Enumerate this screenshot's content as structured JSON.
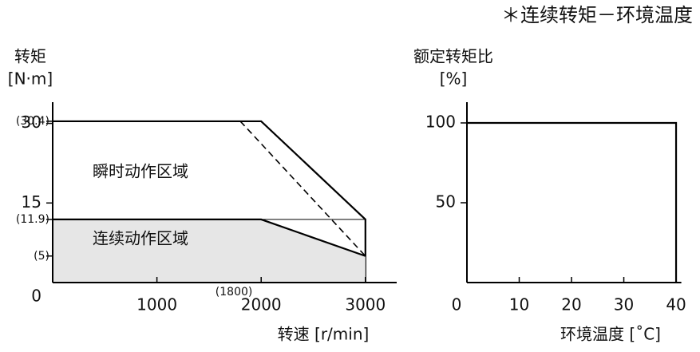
{
  "chart_data": [
    {
      "type": "area",
      "ylabel": "转矩",
      "yunit": "[N·m]",
      "xlabel": "转速 [r/min]",
      "xlim": [
        0,
        3300
      ],
      "ylim": [
        0,
        34
      ],
      "xticks": [
        {
          "value": 1800,
          "label": "(1800)"
        },
        1000,
        2000,
        3000
      ],
      "yticks": [
        0,
        15,
        30,
        {
          "value": 30.4,
          "label": "(30.4)"
        },
        {
          "value": 11.9,
          "label": "(11.9)"
        },
        {
          "value": 5,
          "label": "(5)"
        }
      ],
      "guides": {
        "x": [
          1800,
          2000
        ],
        "y": [
          11.9
        ]
      },
      "series": [
        {
          "name": "瞬时动作区域",
          "fill": "#ffffff",
          "color": "#000000",
          "x": [
            0,
            2000,
            3000,
            3000
          ],
          "values": [
            30.4,
            30.4,
            11.9,
            0
          ]
        },
        {
          "name": "连续动作区域",
          "fill": "#e6e6e6",
          "color": "#000000",
          "x": [
            0,
            2000,
            3000
          ],
          "values": [
            11.9,
            11.9,
            5
          ]
        },
        {
          "color": "#000000",
          "style": "dashed",
          "x": [
            1800,
            3000
          ],
          "values": [
            30.4,
            5
          ]
        }
      ]
    },
    {
      "type": "line",
      "title": "＊连续转矩－环境温度",
      "ylabel": "额定转矩比",
      "yunit": "[%]",
      "xlabel": "环境温度 [˚C]",
      "xlim": [
        0,
        41
      ],
      "ylim": [
        0,
        113
      ],
      "xticks": [
        0,
        10,
        20,
        30,
        40
      ],
      "yticks": [
        50,
        100
      ],
      "series": [
        {
          "color": "#000000",
          "x": [
            0,
            40,
            40
          ],
          "values": [
            100,
            100,
            0
          ]
        }
      ]
    }
  ]
}
